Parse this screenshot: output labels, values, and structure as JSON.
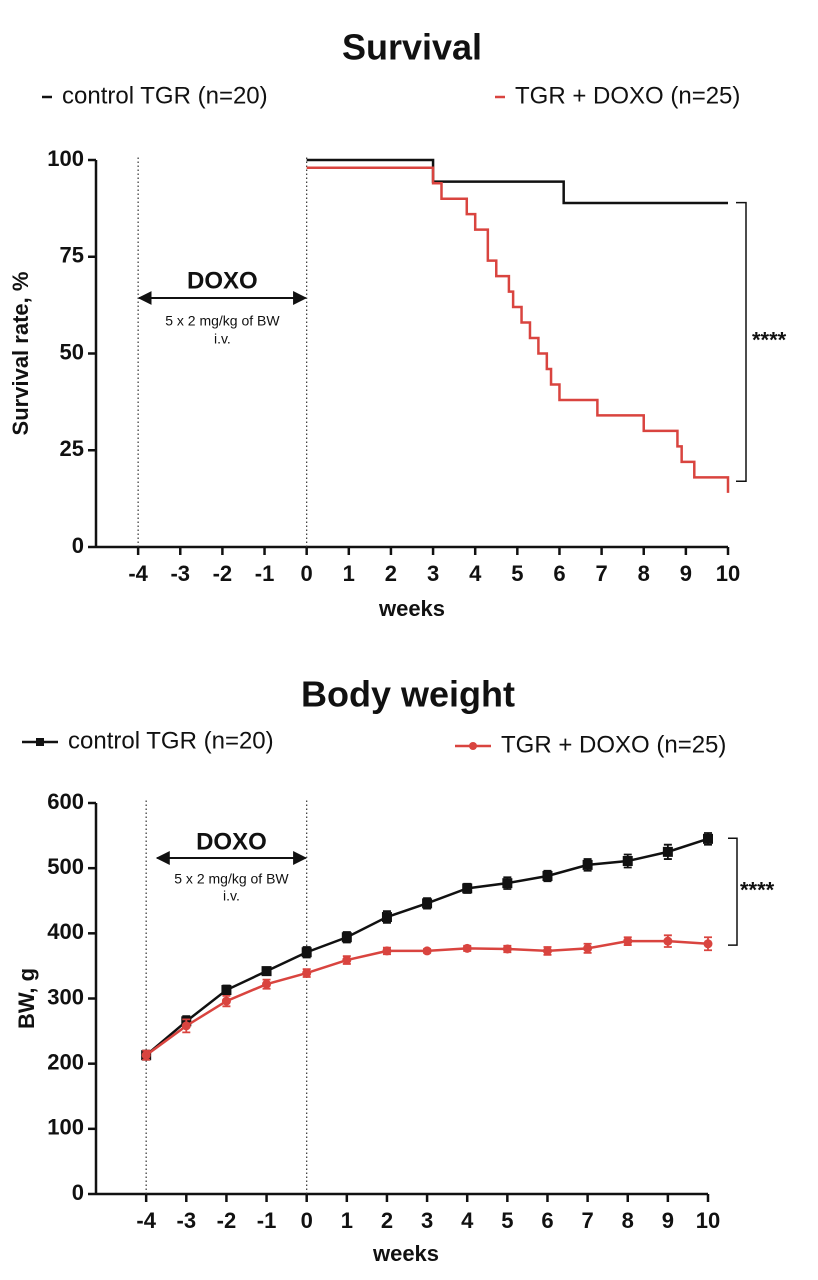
{
  "chart_data": [
    {
      "type": "step",
      "title": "Survival",
      "x_label": "weeks",
      "y_label": "Survival rate, %",
      "xlim": [
        -5,
        10
      ],
      "xticks": [
        -4,
        -3,
        -2,
        -1,
        0,
        1,
        2,
        3,
        4,
        5,
        6,
        7,
        8,
        9,
        10
      ],
      "ylim": [
        0,
        100
      ],
      "yticks": [
        0,
        25,
        50,
        75,
        100
      ],
      "vlines": [
        -4,
        0
      ],
      "annotation": {
        "label": "DOXO",
        "notes": [
          "5 x 2 mg/kg of BW",
          "i.v."
        ],
        "from": -4,
        "to": 0
      },
      "significance": {
        "label": "****",
        "range": [
          89,
          17
        ]
      },
      "series": [
        {
          "name": "control TGR (n=20)",
          "color": "#111111",
          "x": [
            0,
            3,
            6.1,
            10
          ],
          "values": [
            100,
            94.4,
            88.9,
            88.9
          ]
        },
        {
          "name": "TGR + DOXO (n=25)",
          "color": "#d9443f",
          "x": [
            0,
            3,
            3.2,
            3.8,
            4.0,
            4.3,
            4.5,
            4.8,
            4.9,
            5.1,
            5.3,
            5.5,
            5.7,
            5.8,
            6.0,
            6.9,
            8.0,
            8.8,
            8.9,
            9.2,
            10
          ],
          "values": [
            98,
            94,
            90,
            86,
            82,
            74,
            70,
            66,
            62,
            58,
            54,
            50,
            46,
            42,
            38,
            34,
            30,
            26,
            22,
            18,
            14
          ]
        }
      ]
    },
    {
      "type": "line",
      "title": "Body weight",
      "x_label": "weeks",
      "y_label": "BW, g",
      "xlim": [
        -5.25,
        10
      ],
      "xticks": [
        -4,
        -3,
        -2,
        -1,
        0,
        1,
        2,
        3,
        4,
        5,
        6,
        7,
        8,
        9,
        10
      ],
      "ylim": [
        0,
        600
      ],
      "yticks": [
        0,
        100,
        200,
        300,
        400,
        500,
        600
      ],
      "vlines": [
        -4,
        0
      ],
      "annotation": {
        "label": "DOXO",
        "notes": [
          "5 x 2 mg/kg of BW",
          "i.v."
        ],
        "from": -3.75,
        "to": 0
      },
      "significance": {
        "label": "****",
        "range": [
          546,
          382
        ]
      },
      "series": [
        {
          "name": "control TGR (n=20)",
          "color": "#111111",
          "marker": "square",
          "x": [
            -4,
            -3,
            -2,
            -1,
            0,
            1,
            2,
            3,
            4,
            5,
            6,
            7,
            8,
            9,
            10
          ],
          "values": [
            213,
            265,
            313,
            342,
            371,
            394,
            425,
            446,
            469,
            477,
            488,
            505,
            511,
            525,
            545
          ],
          "errors": [
            7,
            8,
            7,
            6,
            8,
            8,
            9,
            8,
            7,
            9,
            8,
            9,
            10,
            11,
            9
          ]
        },
        {
          "name": "TGR + DOXO (n=25)",
          "color": "#d9443f",
          "marker": "circle",
          "x": [
            -4,
            -3,
            -2,
            -1,
            0,
            1,
            2,
            3,
            4,
            5,
            6,
            7,
            8,
            9,
            10
          ],
          "values": [
            213,
            258,
            296,
            322,
            339,
            359,
            373,
            373,
            377,
            376,
            373,
            377,
            388,
            388,
            384
          ],
          "errors": [
            7,
            10,
            8,
            7,
            6,
            6,
            5,
            3,
            4,
            5,
            6,
            7,
            6,
            9,
            10
          ]
        }
      ]
    }
  ]
}
